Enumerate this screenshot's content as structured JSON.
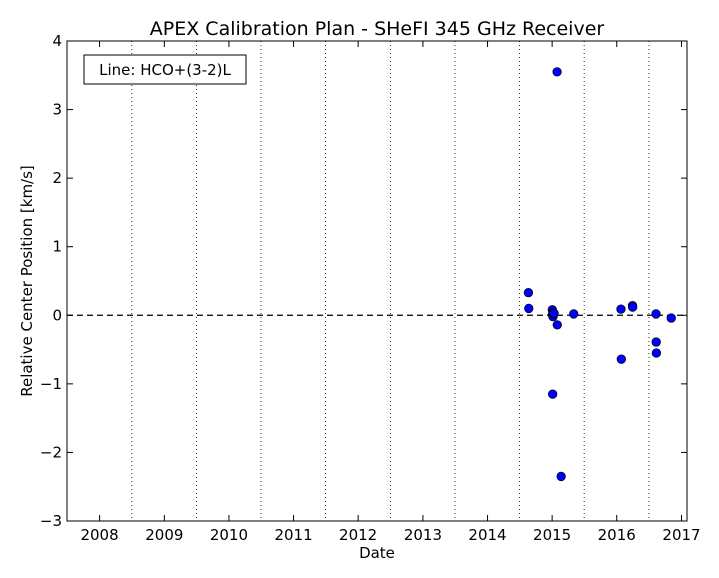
{
  "chart_data": {
    "type": "scatter",
    "title": "APEX Calibration Plan - SHeFI 345 GHz Receiver",
    "xlabel": "Date",
    "ylabel": "Relative Center Position [km/s]",
    "annotation": "Line: HCO+(3-2)L",
    "x_ticks": [
      "2008",
      "2009",
      "2010",
      "2011",
      "2012",
      "2013",
      "2014",
      "2015",
      "2016",
      "2017"
    ],
    "y_ticks": [
      -3,
      -2,
      -1,
      0,
      1,
      2,
      3,
      4
    ],
    "y_tick_labels": [
      "−3",
      "−2",
      "−1",
      "0",
      "1",
      "2",
      "3",
      "4"
    ],
    "xlim": [
      "2007-07-01",
      "2017-02-01"
    ],
    "ylim": [
      -3,
      4
    ],
    "reference_line_y": 0,
    "year_boundaries": [
      "2008-07-01",
      "2009-07-01",
      "2010-07-01",
      "2011-07-01",
      "2012-07-01",
      "2013-07-01",
      "2014-07-01",
      "2015-07-01",
      "2016-07-01"
    ],
    "grid": "vertical dotted lines at year boundaries",
    "marker_color": "#0000ff",
    "points": [
      {
        "x": "2014-08-20",
        "y": 0.33
      },
      {
        "x": "2014-08-22",
        "y": 0.1
      },
      {
        "x": "2015-01-02",
        "y": 0.08
      },
      {
        "x": "2015-01-03",
        "y": 0.01
      },
      {
        "x": "2015-01-06",
        "y": -0.02
      },
      {
        "x": "2015-01-08",
        "y": 0.04
      },
      {
        "x": "2015-01-10",
        "y": 0.02
      },
      {
        "x": "2015-01-12",
        "y": 0.03
      },
      {
        "x": "2015-01-04",
        "y": -1.15
      },
      {
        "x": "2015-01-29",
        "y": 3.55
      },
      {
        "x": "2015-01-30",
        "y": -0.14
      },
      {
        "x": "2015-02-21",
        "y": -2.35
      },
      {
        "x": "2015-05-03",
        "y": 0.02
      },
      {
        "x": "2016-01-25",
        "y": 0.09
      },
      {
        "x": "2016-01-27",
        "y": -0.64
      },
      {
        "x": "2016-03-30",
        "y": 0.14
      },
      {
        "x": "2016-03-31",
        "y": 0.12
      },
      {
        "x": "2016-08-10",
        "y": 0.02
      },
      {
        "x": "2016-08-11",
        "y": -0.39
      },
      {
        "x": "2016-08-12",
        "y": -0.55
      },
      {
        "x": "2016-11-04",
        "y": -0.04
      }
    ]
  }
}
